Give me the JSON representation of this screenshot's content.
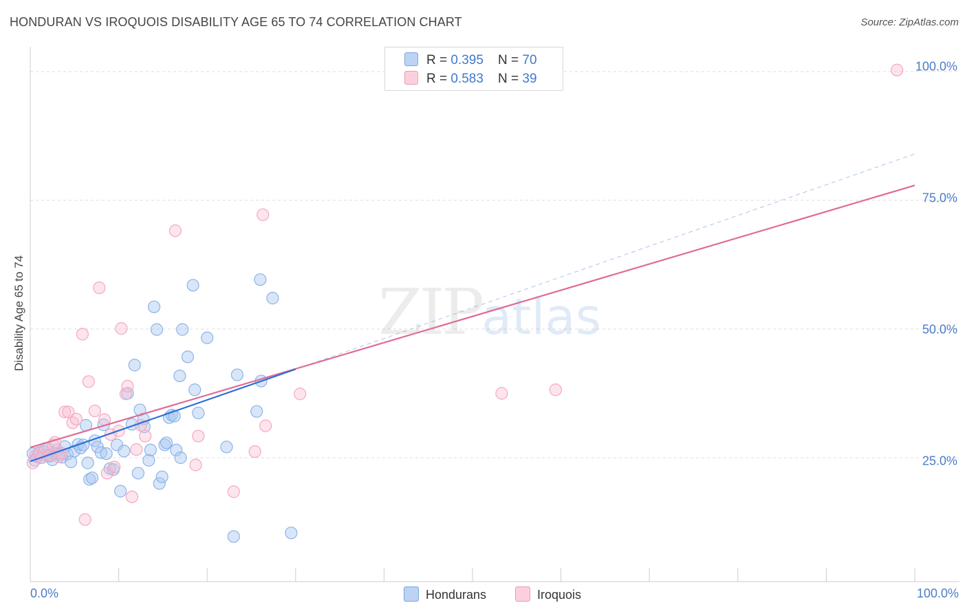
{
  "header": {
    "title": "HONDURAN VS IROQUOIS DISABILITY AGE 65 TO 74 CORRELATION CHART",
    "source": "Source: ZipAtlas.com"
  },
  "watermark": {
    "zip": "ZIP",
    "atlas": "atlas"
  },
  "legend": {
    "r_label": "R = ",
    "n_label": "N = ",
    "series": [
      {
        "r": "0.395",
        "n": "70"
      },
      {
        "r": "0.583",
        "n": "39"
      }
    ]
  },
  "bottom_legend": {
    "items": [
      "Hondurans",
      "Iroquois"
    ]
  },
  "chart_data": {
    "type": "scatter",
    "title": "HONDURAN VS IROQUOIS DISABILITY AGE 65 TO 74 CORRELATION CHART",
    "xlabel": "",
    "ylabel": "Disability Age 65 to 74",
    "xlim": [
      0,
      100
    ],
    "ylim": [
      0,
      100
    ],
    "x_tick_labels": [
      "0.0%",
      "100.0%"
    ],
    "y_ticks": [
      25,
      50,
      75,
      100
    ],
    "y_tick_labels": [
      "25.0%",
      "50.0%",
      "75.0%",
      "100.0%"
    ],
    "grid": true,
    "colors": {
      "hondurans": "#8ab4ea",
      "iroquois": "#f4a8c0",
      "hond_line": "#2f6fd6",
      "iroq_line": "#e06a94",
      "tick": "#4a7cc9"
    },
    "series": [
      {
        "name": "Hondurans",
        "r": 0.395,
        "n": 70,
        "trend": {
          "x": [
            0,
            30
          ],
          "y": [
            24.3,
            42.2
          ]
        },
        "trend_extension": {
          "x": [
            30,
            100
          ],
          "y": [
            42.2,
            84.0
          ]
        },
        "points": [
          [
            0.3,
            25.8
          ],
          [
            0.5,
            24.5
          ],
          [
            0.8,
            25.2
          ],
          [
            1.0,
            26.0
          ],
          [
            1.2,
            25.0
          ],
          [
            1.5,
            26.2
          ],
          [
            1.8,
            25.5
          ],
          [
            2.0,
            26.8
          ],
          [
            2.2,
            25.3
          ],
          [
            2.5,
            24.6
          ],
          [
            2.8,
            25.8
          ],
          [
            3.0,
            26.5
          ],
          [
            3.3,
            25.6
          ],
          [
            3.6,
            25.1
          ],
          [
            3.9,
            27.2
          ],
          [
            4.2,
            25.7
          ],
          [
            4.6,
            24.2
          ],
          [
            5.0,
            26.3
          ],
          [
            5.4,
            27.6
          ],
          [
            5.7,
            26.9
          ],
          [
            6.0,
            27.5
          ],
          [
            6.3,
            31.3
          ],
          [
            6.7,
            20.8
          ],
          [
            7.0,
            21.1
          ],
          [
            7.3,
            28.3
          ],
          [
            7.6,
            27.1
          ],
          [
            8.0,
            26.0
          ],
          [
            8.3,
            31.4
          ],
          [
            8.6,
            25.8
          ],
          [
            9.0,
            22.9
          ],
          [
            9.4,
            22.7
          ],
          [
            9.8,
            27.5
          ],
          [
            10.2,
            18.5
          ],
          [
            10.6,
            26.3
          ],
          [
            11.0,
            37.5
          ],
          [
            11.5,
            31.5
          ],
          [
            11.8,
            43.0
          ],
          [
            12.2,
            22.0
          ],
          [
            12.4,
            34.3
          ],
          [
            12.8,
            32.5
          ],
          [
            12.9,
            31.0
          ],
          [
            13.4,
            24.5
          ],
          [
            13.6,
            26.5
          ],
          [
            14.0,
            54.3
          ],
          [
            14.3,
            49.9
          ],
          [
            14.6,
            20.0
          ],
          [
            14.9,
            21.3
          ],
          [
            15.2,
            27.5
          ],
          [
            15.4,
            27.9
          ],
          [
            15.7,
            32.8
          ],
          [
            16.0,
            33.3
          ],
          [
            16.3,
            33.1
          ],
          [
            16.5,
            26.5
          ],
          [
            16.9,
            40.9
          ],
          [
            17.2,
            49.9
          ],
          [
            17.8,
            44.6
          ],
          [
            18.4,
            58.5
          ],
          [
            18.6,
            38.2
          ],
          [
            19.0,
            33.7
          ],
          [
            20.0,
            48.3
          ],
          [
            22.2,
            27.1
          ],
          [
            23.4,
            41.1
          ],
          [
            23.0,
            9.7
          ],
          [
            25.6,
            34.0
          ],
          [
            26.0,
            59.6
          ],
          [
            26.1,
            39.9
          ],
          [
            27.4,
            56.0
          ],
          [
            29.5,
            10.4
          ],
          [
            17.0,
            25.0
          ],
          [
            6.5,
            24.0
          ]
        ]
      },
      {
        "name": "Iroquois",
        "r": 0.583,
        "n": 39,
        "trend": {
          "x": [
            0,
            100
          ],
          "y": [
            27.0,
            77.9
          ]
        },
        "points": [
          [
            0.3,
            24.0
          ],
          [
            0.6,
            25.4
          ],
          [
            1.0,
            25.9
          ],
          [
            1.3,
            25.0
          ],
          [
            1.7,
            26.8
          ],
          [
            2.2,
            25.5
          ],
          [
            2.6,
            27.5
          ],
          [
            2.8,
            28.0
          ],
          [
            3.2,
            25.2
          ],
          [
            3.5,
            25.9
          ],
          [
            3.9,
            33.9
          ],
          [
            4.3,
            33.9
          ],
          [
            4.8,
            31.8
          ],
          [
            5.2,
            32.5
          ],
          [
            5.9,
            49.0
          ],
          [
            6.2,
            13.0
          ],
          [
            6.6,
            39.8
          ],
          [
            7.3,
            34.1
          ],
          [
            7.8,
            58.0
          ],
          [
            8.4,
            32.4
          ],
          [
            8.7,
            22.0
          ],
          [
            9.1,
            29.5
          ],
          [
            9.5,
            23.2
          ],
          [
            10.0,
            30.2
          ],
          [
            10.3,
            50.1
          ],
          [
            10.8,
            37.4
          ],
          [
            11.0,
            38.9
          ],
          [
            11.5,
            17.4
          ],
          [
            12.0,
            26.6
          ],
          [
            12.5,
            31.3
          ],
          [
            13.0,
            29.2
          ],
          [
            16.4,
            69.1
          ],
          [
            18.7,
            23.6
          ],
          [
            19.0,
            29.2
          ],
          [
            23.0,
            18.4
          ],
          [
            25.4,
            26.2
          ],
          [
            26.3,
            72.2
          ],
          [
            26.6,
            31.2
          ],
          [
            30.5,
            37.4
          ]
        ],
        "extra_points": [
          [
            53.3,
            37.5
          ],
          [
            59.4,
            38.2
          ],
          [
            98.0,
            100.3
          ]
        ]
      }
    ]
  }
}
